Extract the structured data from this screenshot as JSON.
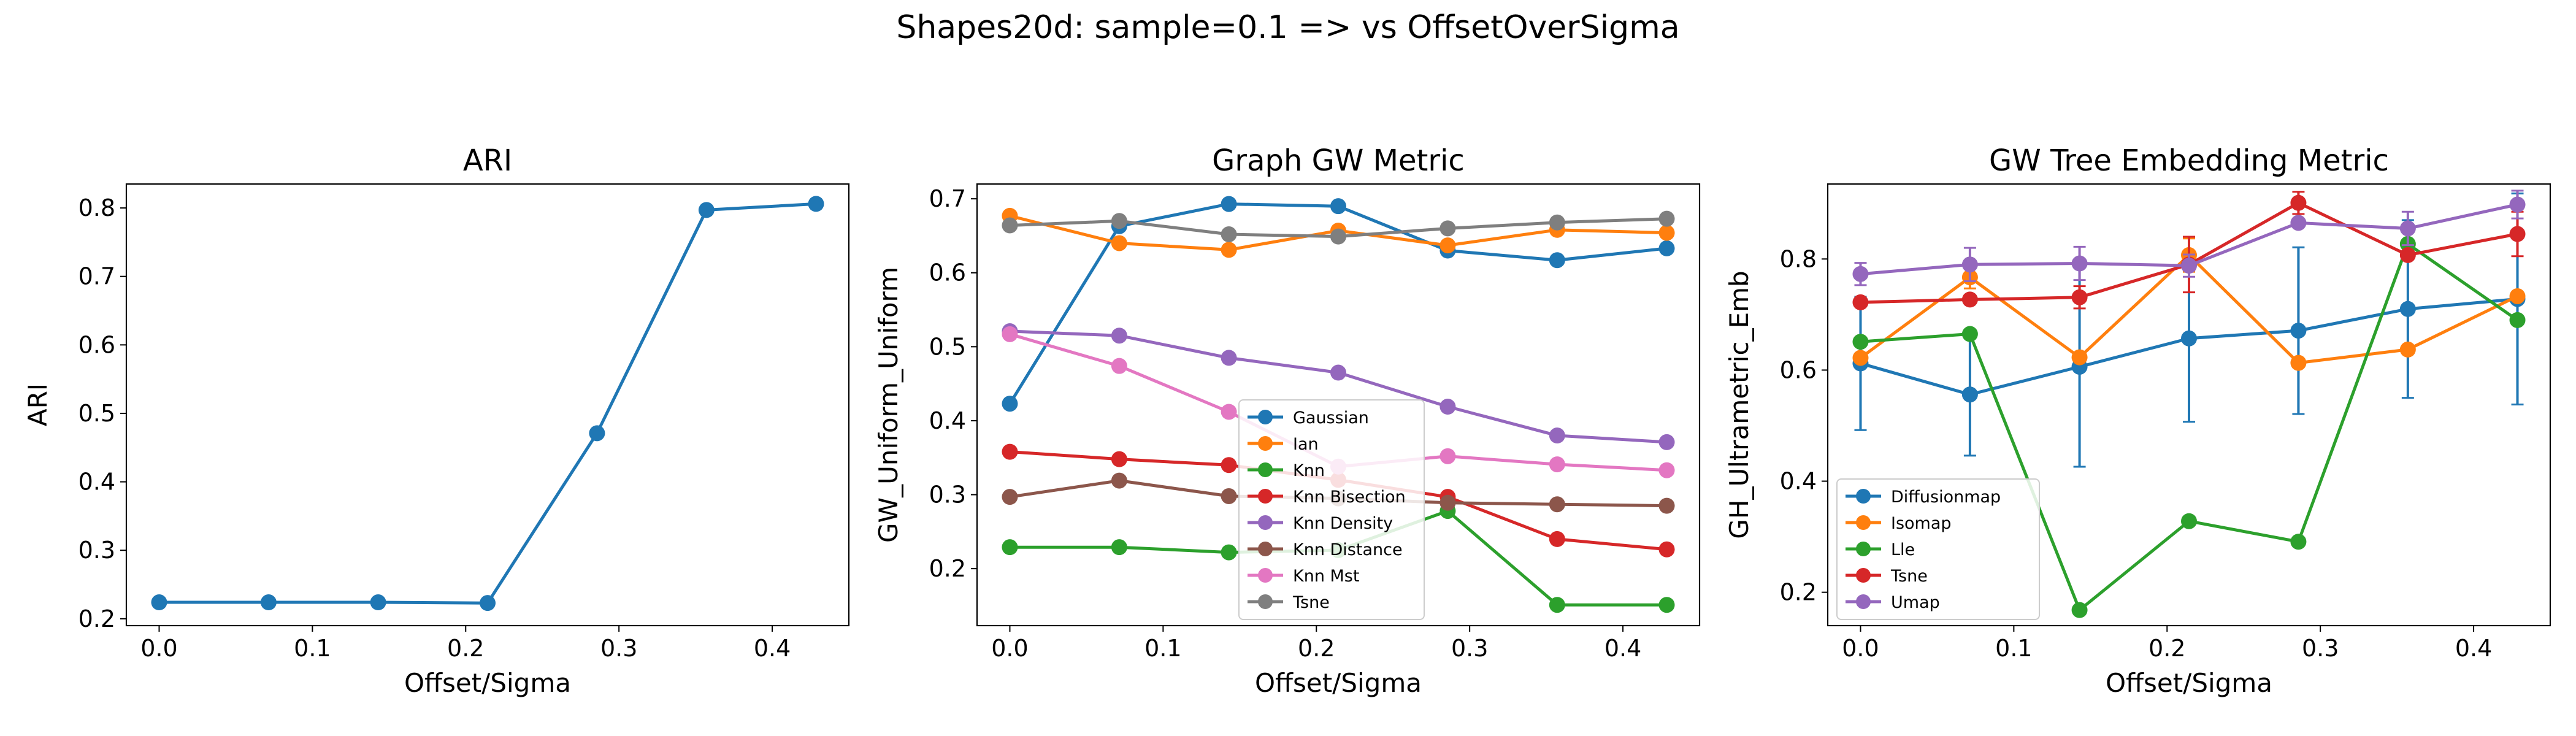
{
  "figure": {
    "suptitle": "Shapes20d: sample=0.1 => vs OffsetOverSigma"
  },
  "chart_data": [
    {
      "type": "line",
      "title": "ARI",
      "xlabel": "Offset/Sigma",
      "ylabel": "ARI",
      "x": [
        0.0,
        0.0714,
        0.1429,
        0.2143,
        0.2857,
        0.3571,
        0.4286
      ],
      "xlim": [
        -0.0214,
        0.45
      ],
      "ylim": [
        0.19,
        0.835
      ],
      "xticks": [
        0.0,
        0.1,
        0.2,
        0.3,
        0.4
      ],
      "xtick_labels": [
        "0.0",
        "0.1",
        "0.2",
        "0.3",
        "0.4"
      ],
      "yticks": [
        0.2,
        0.3,
        0.4,
        0.5,
        0.6,
        0.7,
        0.8
      ],
      "ytick_labels": [
        "0.2",
        "0.3",
        "0.4",
        "0.5",
        "0.6",
        "0.7",
        "0.8"
      ],
      "legend": "none",
      "grid": false,
      "series": [
        {
          "name": "",
          "color": "#1f77b4",
          "values": [
            0.224,
            0.224,
            0.224,
            0.223,
            0.471,
            0.797,
            0.806
          ]
        }
      ]
    },
    {
      "type": "line",
      "title": "Graph GW Metric",
      "xlabel": "Offset/Sigma",
      "ylabel": "GW_Uniform_Uniform",
      "x": [
        0.0,
        0.0714,
        0.1429,
        0.2143,
        0.2857,
        0.3571,
        0.4286
      ],
      "xlim": [
        -0.0214,
        0.45
      ],
      "ylim": [
        0.123,
        0.72
      ],
      "xticks": [
        0.0,
        0.1,
        0.2,
        0.3,
        0.4
      ],
      "xtick_labels": [
        "0.0",
        "0.1",
        "0.2",
        "0.3",
        "0.4"
      ],
      "yticks": [
        0.2,
        0.3,
        0.4,
        0.5,
        0.6,
        0.7
      ],
      "ytick_labels": [
        "0.2",
        "0.3",
        "0.4",
        "0.5",
        "0.6",
        "0.7"
      ],
      "legend": "lower-center",
      "grid": false,
      "series": [
        {
          "name": "Gaussian",
          "color": "#1f77b4",
          "values": [
            0.423,
            0.663,
            0.693,
            0.69,
            0.63,
            0.617,
            0.633
          ]
        },
        {
          "name": "Ian",
          "color": "#ff7f0e",
          "values": [
            0.677,
            0.64,
            0.631,
            0.657,
            0.637,
            0.658,
            0.654
          ]
        },
        {
          "name": "Knn",
          "color": "#2ca02c",
          "values": [
            0.229,
            0.229,
            0.222,
            0.225,
            0.278,
            0.151,
            0.151
          ]
        },
        {
          "name": "Knn Bisection",
          "color": "#d62728",
          "values": [
            0.358,
            0.348,
            0.34,
            0.32,
            0.297,
            0.24,
            0.226
          ]
        },
        {
          "name": "Knn Density",
          "color": "#9467bd",
          "values": [
            0.521,
            0.515,
            0.485,
            0.465,
            0.419,
            0.38,
            0.371
          ]
        },
        {
          "name": "Knn Distance",
          "color": "#8c564b",
          "values": [
            0.297,
            0.319,
            0.298,
            0.295,
            0.289,
            0.287,
            0.285
          ]
        },
        {
          "name": "Knn Mst",
          "color": "#e377c2",
          "values": [
            0.517,
            0.474,
            0.412,
            0.338,
            0.352,
            0.341,
            0.333
          ]
        },
        {
          "name": "Tsne",
          "color": "#7f7f7f",
          "values": [
            0.664,
            0.67,
            0.652,
            0.649,
            0.66,
            0.668,
            0.673
          ]
        }
      ]
    },
    {
      "type": "line",
      "title": "GW Tree Embedding Metric",
      "xlabel": "Offset/Sigma",
      "ylabel": "GH_Ultrametric_Emb",
      "x": [
        0.0,
        0.0714,
        0.1429,
        0.2143,
        0.2857,
        0.3571,
        0.4286
      ],
      "xlim": [
        -0.0214,
        0.45
      ],
      "ylim": [
        0.14,
        0.935
      ],
      "xticks": [
        0.0,
        0.1,
        0.2,
        0.3,
        0.4
      ],
      "xtick_labels": [
        "0.0",
        "0.1",
        "0.2",
        "0.3",
        "0.4"
      ],
      "yticks": [
        0.2,
        0.4,
        0.6,
        0.8
      ],
      "ytick_labels": [
        "0.2",
        "0.4",
        "0.6",
        "0.8"
      ],
      "legend": "lower-left",
      "grid": false,
      "series": [
        {
          "name": "Diffusionmap",
          "color": "#1f77b4",
          "values": [
            0.612,
            0.556,
            0.606,
            0.657,
            0.671,
            0.71,
            0.728
          ],
          "err": [
            0.12,
            0.11,
            0.18,
            0.15,
            0.15,
            0.16,
            0.19
          ]
        },
        {
          "name": "Isomap",
          "color": "#ff7f0e",
          "values": [
            0.622,
            0.767,
            0.623,
            0.807,
            0.613,
            0.637,
            0.733
          ],
          "err": [
            0.0,
            0.02,
            0.0,
            0.03,
            0.0,
            0.0,
            0.0
          ]
        },
        {
          "name": "Lle",
          "color": "#2ca02c",
          "values": [
            0.651,
            0.665,
            0.168,
            0.328,
            0.291,
            0.827,
            0.69
          ],
          "err": [
            0.0,
            0.0,
            0.0,
            0.0,
            0.0,
            0.0,
            0.0
          ]
        },
        {
          "name": "Tsne",
          "color": "#d62728",
          "values": [
            0.722,
            0.727,
            0.731,
            0.79,
            0.901,
            0.807,
            0.845
          ],
          "err": [
            0.0,
            0.0,
            0.02,
            0.05,
            0.02,
            0.0,
            0.04
          ]
        },
        {
          "name": "Umap",
          "color": "#9467bd",
          "values": [
            0.773,
            0.79,
            0.792,
            0.788,
            0.865,
            0.855,
            0.898
          ],
          "err": [
            0.02,
            0.03,
            0.03,
            0.02,
            0.0,
            0.03,
            0.025
          ]
        }
      ]
    }
  ]
}
